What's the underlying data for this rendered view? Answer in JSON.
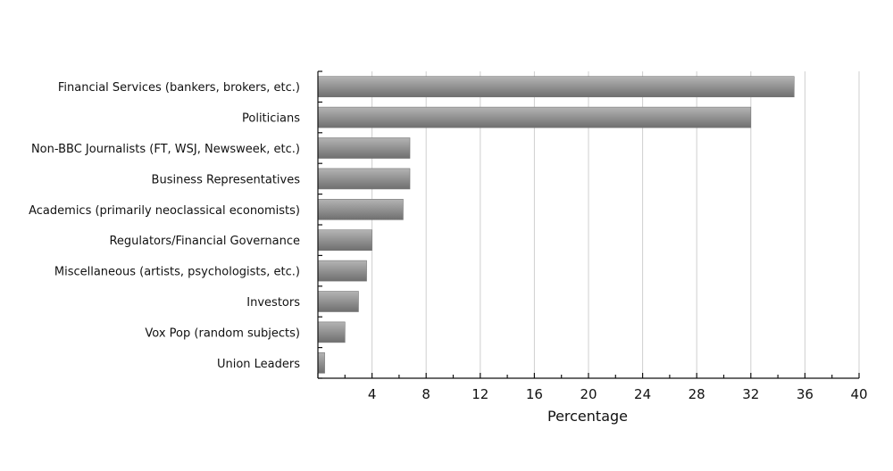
{
  "chart_data": {
    "type": "bar",
    "orientation": "horizontal",
    "categories": [
      "Financial Services (bankers, brokers, etc.)",
      "Politicians",
      "Non-BBC Journalists (FT, WSJ, Newsweek, etc.)",
      "Business Representatives",
      "Academics (primarily neoclassical economists)",
      "Regulators/Financial Governance",
      "Miscellaneous (artists, psychologists, etc.)",
      "Investors",
      "Vox Pop (random subjects)",
      "Union Leaders"
    ],
    "values": [
      35.2,
      32.0,
      6.8,
      6.8,
      6.3,
      4.0,
      3.6,
      3.0,
      2.0,
      0.5
    ],
    "xlabel": "Percentage",
    "ylabel": "",
    "xlim": [
      0,
      40
    ],
    "xticks": [
      4,
      8,
      12,
      16,
      20,
      24,
      28,
      32,
      36,
      40
    ],
    "grid": "vertical",
    "bar_color": "#8a8a8a",
    "bar_gradient_light": "#b4b4b4",
    "bar_gradient_dark": "#6f6f6f"
  }
}
